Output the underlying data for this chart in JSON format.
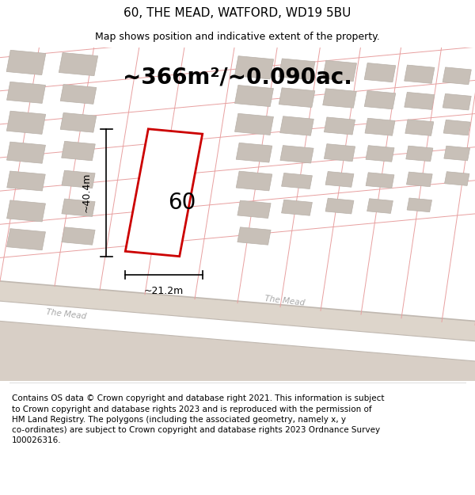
{
  "title": "60, THE MEAD, WATFORD, WD19 5BU",
  "subtitle": "Map shows position and indicative extent of the property.",
  "footer": "Contains OS data © Crown copyright and database right 2021. This information is subject\nto Crown copyright and database rights 2023 and is reproduced with the permission of\nHM Land Registry. The polygons (including the associated geometry, namely x, y\nco-ordinates) are subject to Crown copyright and database rights 2023 Ordnance Survey\n100026316.",
  "area_label": "~366m²/~0.090ac.",
  "width_label": "~21.2m",
  "height_label": "~40.4m",
  "plot_number": "60",
  "page_bg": "#ffffff",
  "map_bg": "#f2ede8",
  "road_fill": "#ddd5cb",
  "grid_line_color": "#e8a0a0",
  "building_fill": "#c8c0b8",
  "building_stroke": "#b8b0a8",
  "plot_stroke": "#cc0000",
  "plot_fill": "#ffffff",
  "dim_line_color": "#000000",
  "text_color": "#000000",
  "street_text_color": "#a8a8a8",
  "title_fontsize": 11,
  "subtitle_fontsize": 9,
  "area_fontsize": 20,
  "footer_fontsize": 7.5,
  "plot_number_fontsize": 20
}
